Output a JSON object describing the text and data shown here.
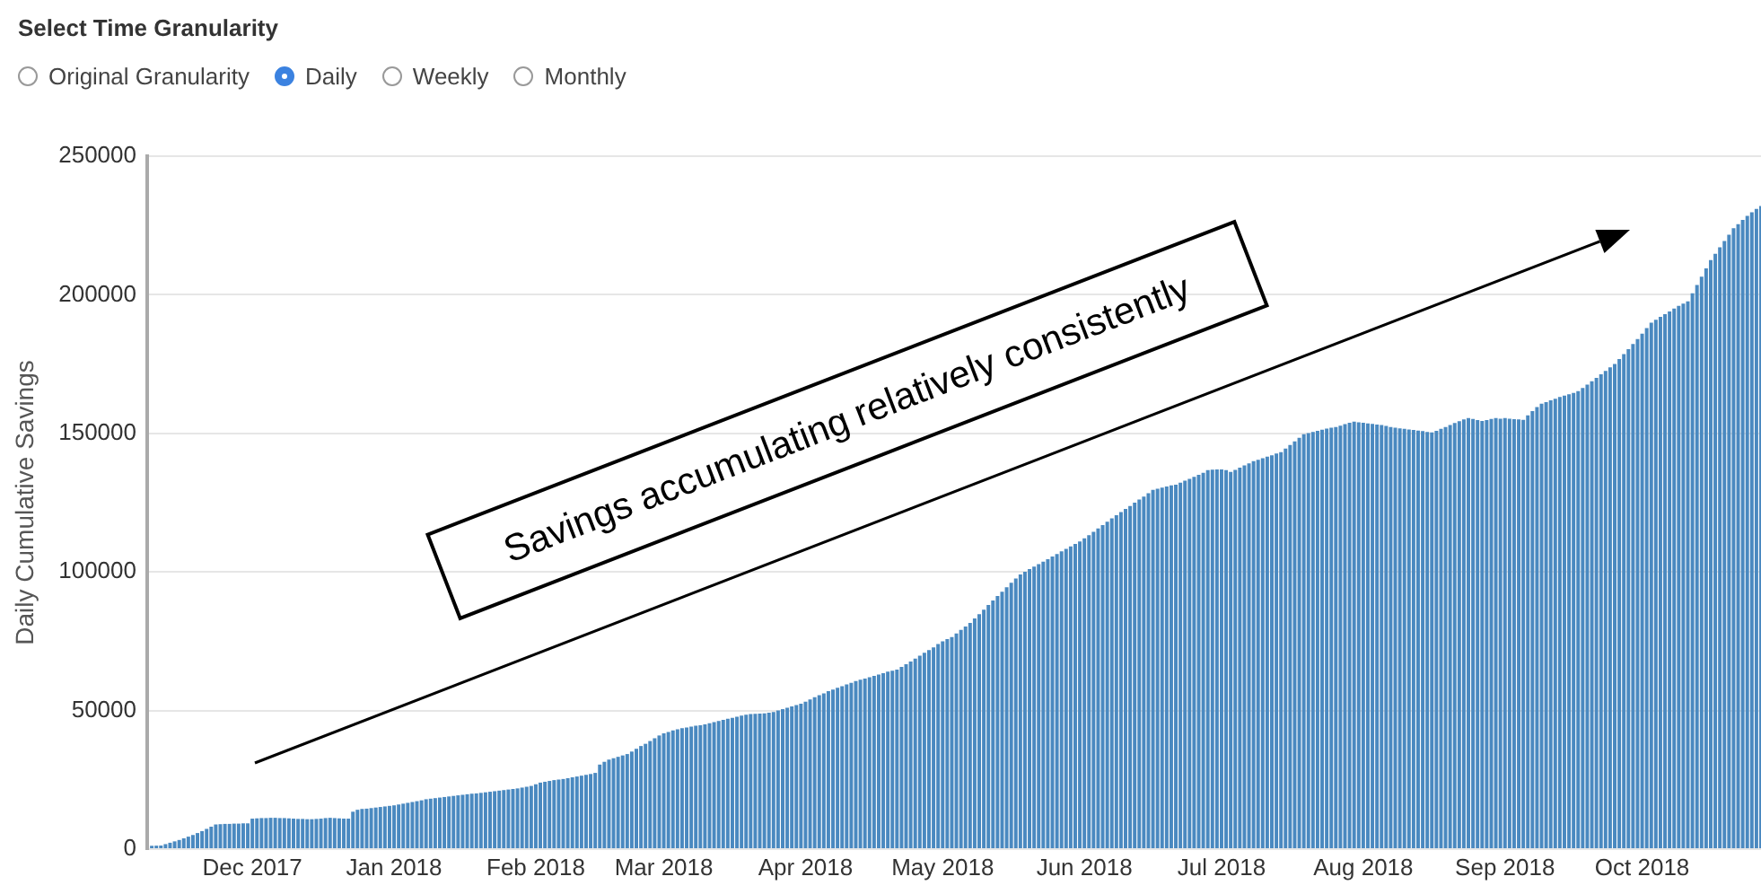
{
  "chart_data": {
    "type": "bar",
    "annotations": [
      "Select Time Granularity",
      "Original Granularity",
      "Daily",
      "Weekly",
      "Monthly",
      "Savings accumulating relatively consistently"
    ],
    "ylabel": "Daily Cumulative Savings",
    "x": [
      "2017-11-09",
      "2017-11-10",
      "2017-11-11",
      "2017-11-12",
      "2017-11-13",
      "2017-11-14",
      "2017-11-15",
      "2017-11-16",
      "2017-11-17",
      "2017-11-18",
      "2017-11-19",
      "2017-11-20",
      "2017-11-21",
      "2017-11-22",
      "2017-11-23",
      "2017-11-24",
      "2017-11-25",
      "2017-11-26",
      "2017-11-27",
      "2017-11-28",
      "2017-11-29",
      "2017-11-30",
      "2017-12-01",
      "2017-12-02",
      "2017-12-03",
      "2017-12-04",
      "2017-12-05",
      "2017-12-06",
      "2017-12-07",
      "2017-12-08",
      "2017-12-09",
      "2017-12-10",
      "2017-12-11",
      "2017-12-12",
      "2017-12-13",
      "2017-12-14",
      "2017-12-15",
      "2017-12-16",
      "2017-12-17",
      "2017-12-18",
      "2017-12-19",
      "2017-12-20",
      "2017-12-21",
      "2017-12-22",
      "2017-12-23",
      "2017-12-24",
      "2017-12-25",
      "2017-12-26",
      "2017-12-27",
      "2017-12-28",
      "2017-12-29",
      "2017-12-30",
      "2017-12-31",
      "2018-01-01",
      "2018-01-02",
      "2018-01-03",
      "2018-01-04",
      "2018-01-05",
      "2018-01-06",
      "2018-01-07",
      "2018-01-08",
      "2018-01-09",
      "2018-01-10",
      "2018-01-11",
      "2018-01-12",
      "2018-01-13",
      "2018-01-14",
      "2018-01-15",
      "2018-01-16",
      "2018-01-17",
      "2018-01-18",
      "2018-01-19",
      "2018-01-20",
      "2018-01-21",
      "2018-01-22",
      "2018-01-23",
      "2018-01-24",
      "2018-01-25",
      "2018-01-26",
      "2018-01-27",
      "2018-01-28",
      "2018-01-29",
      "2018-01-30",
      "2018-01-31",
      "2018-02-01",
      "2018-02-02",
      "2018-02-03",
      "2018-02-04",
      "2018-02-05",
      "2018-02-06",
      "2018-02-07",
      "2018-02-08",
      "2018-02-09",
      "2018-02-10",
      "2018-02-11",
      "2018-02-12",
      "2018-02-13",
      "2018-02-14",
      "2018-02-15",
      "2018-02-16",
      "2018-02-17",
      "2018-02-18",
      "2018-02-19",
      "2018-02-20",
      "2018-02-21",
      "2018-02-22",
      "2018-02-23",
      "2018-02-24",
      "2018-02-25",
      "2018-02-26",
      "2018-02-27",
      "2018-02-28",
      "2018-03-01",
      "2018-03-02",
      "2018-03-03",
      "2018-03-04",
      "2018-03-05",
      "2018-03-06",
      "2018-03-07",
      "2018-03-08",
      "2018-03-09",
      "2018-03-10",
      "2018-03-11",
      "2018-03-12",
      "2018-03-13",
      "2018-03-14",
      "2018-03-15",
      "2018-03-16",
      "2018-03-17",
      "2018-03-18",
      "2018-03-19",
      "2018-03-20",
      "2018-03-21",
      "2018-03-22",
      "2018-03-23",
      "2018-03-24",
      "2018-03-25",
      "2018-03-26",
      "2018-03-27",
      "2018-03-28",
      "2018-03-29",
      "2018-03-30",
      "2018-03-31",
      "2018-04-01",
      "2018-04-02",
      "2018-04-03",
      "2018-04-04",
      "2018-04-05",
      "2018-04-06",
      "2018-04-07",
      "2018-04-08",
      "2018-04-09",
      "2018-04-10",
      "2018-04-11",
      "2018-04-12",
      "2018-04-13",
      "2018-04-14",
      "2018-04-15",
      "2018-04-16",
      "2018-04-17",
      "2018-04-18",
      "2018-04-19",
      "2018-04-20",
      "2018-04-21",
      "2018-04-22",
      "2018-04-23",
      "2018-04-24",
      "2018-04-25",
      "2018-04-26",
      "2018-04-27",
      "2018-04-28",
      "2018-04-29",
      "2018-04-30",
      "2018-05-01",
      "2018-05-02",
      "2018-05-03",
      "2018-05-04",
      "2018-05-05",
      "2018-05-06",
      "2018-05-07",
      "2018-05-08",
      "2018-05-09",
      "2018-05-10",
      "2018-05-11",
      "2018-05-12",
      "2018-05-13",
      "2018-05-14",
      "2018-05-15",
      "2018-05-16",
      "2018-05-17",
      "2018-05-18",
      "2018-05-19",
      "2018-05-20",
      "2018-05-21",
      "2018-05-22",
      "2018-05-23",
      "2018-05-24",
      "2018-05-25",
      "2018-05-26",
      "2018-05-27",
      "2018-05-28",
      "2018-05-29",
      "2018-05-30",
      "2018-05-31",
      "2018-06-01",
      "2018-06-02",
      "2018-06-03",
      "2018-06-04",
      "2018-06-05",
      "2018-06-06",
      "2018-06-07",
      "2018-06-08",
      "2018-06-09",
      "2018-06-10",
      "2018-06-11",
      "2018-06-12",
      "2018-06-13",
      "2018-06-14",
      "2018-06-15",
      "2018-06-16",
      "2018-06-17",
      "2018-06-18",
      "2018-06-19",
      "2018-06-20",
      "2018-06-21",
      "2018-06-22",
      "2018-06-23",
      "2018-06-24",
      "2018-06-25",
      "2018-06-26",
      "2018-06-27",
      "2018-06-28",
      "2018-06-29",
      "2018-06-30",
      "2018-07-01",
      "2018-07-02",
      "2018-07-03",
      "2018-07-04",
      "2018-07-05",
      "2018-07-06",
      "2018-07-07",
      "2018-07-08",
      "2018-07-09",
      "2018-07-10",
      "2018-07-11",
      "2018-07-12",
      "2018-07-13",
      "2018-07-14",
      "2018-07-15",
      "2018-07-16",
      "2018-07-17",
      "2018-07-18",
      "2018-07-19",
      "2018-07-20",
      "2018-07-21",
      "2018-07-22",
      "2018-07-23",
      "2018-07-24",
      "2018-07-25",
      "2018-07-26",
      "2018-07-27",
      "2018-07-28",
      "2018-07-29",
      "2018-07-30",
      "2018-07-31",
      "2018-08-01",
      "2018-08-02",
      "2018-08-03",
      "2018-08-04",
      "2018-08-05",
      "2018-08-06",
      "2018-08-07",
      "2018-08-08",
      "2018-08-09",
      "2018-08-10",
      "2018-08-11",
      "2018-08-12",
      "2018-08-13",
      "2018-08-14",
      "2018-08-15",
      "2018-08-16",
      "2018-08-17",
      "2018-08-18",
      "2018-08-19",
      "2018-08-20",
      "2018-08-21",
      "2018-08-22",
      "2018-08-23",
      "2018-08-24",
      "2018-08-25",
      "2018-08-26",
      "2018-08-27",
      "2018-08-28",
      "2018-08-29",
      "2018-08-30",
      "2018-08-31",
      "2018-09-01",
      "2018-09-02",
      "2018-09-03",
      "2018-09-04",
      "2018-09-05",
      "2018-09-06",
      "2018-09-07",
      "2018-09-08",
      "2018-09-09",
      "2018-09-10",
      "2018-09-11",
      "2018-09-12",
      "2018-09-13",
      "2018-09-14",
      "2018-09-15",
      "2018-09-16",
      "2018-09-17",
      "2018-09-18",
      "2018-09-19",
      "2018-09-20",
      "2018-09-21",
      "2018-09-22",
      "2018-09-23",
      "2018-09-24",
      "2018-09-25",
      "2018-09-26",
      "2018-09-27",
      "2018-09-28",
      "2018-09-29",
      "2018-09-30",
      "2018-10-01",
      "2018-10-02",
      "2018-10-03",
      "2018-10-04",
      "2018-10-05",
      "2018-10-06",
      "2018-10-07",
      "2018-10-08",
      "2018-10-09",
      "2018-10-10",
      "2018-10-11",
      "2018-10-12",
      "2018-10-13",
      "2018-10-14",
      "2018-10-15",
      "2018-10-16",
      "2018-10-17",
      "2018-10-18",
      "2018-10-19",
      "2018-10-20",
      "2018-10-21",
      "2018-10-22",
      "2018-10-23",
      "2018-10-24",
      "2018-10-25",
      "2018-10-26",
      "2018-10-27"
    ],
    "values": [
      1200,
      1250,
      1300,
      1800,
      2300,
      2800,
      3300,
      3900,
      4500,
      5100,
      5800,
      6500,
      7300,
      8100,
      8900,
      9000,
      9100,
      9100,
      9200,
      9200,
      9300,
      9300,
      11000,
      11100,
      11200,
      11200,
      11300,
      11300,
      11200,
      11200,
      11100,
      11000,
      10900,
      10900,
      10800,
      10800,
      10900,
      11000,
      11200,
      11300,
      11200,
      11100,
      11000,
      11000,
      13500,
      14200,
      14500,
      14600,
      14800,
      15000,
      15200,
      15400,
      15600,
      15800,
      16100,
      16400,
      16700,
      17000,
      17300,
      17600,
      18000,
      18200,
      18400,
      18600,
      18800,
      19000,
      19200,
      19400,
      19600,
      19800,
      20000,
      20100,
      20300,
      20500,
      20700,
      20900,
      21100,
      21300,
      21500,
      21700,
      21900,
      22200,
      22500,
      22800,
      23400,
      24000,
      24300,
      24600,
      24900,
      25100,
      25300,
      25600,
      25900,
      26200,
      26500,
      26800,
      27100,
      27500,
      30500,
      31500,
      32300,
      32800,
      33300,
      33800,
      34300,
      35200,
      36200,
      37200,
      38000,
      39000,
      40000,
      41000,
      41800,
      42300,
      42800,
      43200,
      43600,
      43900,
      44200,
      44500,
      44700,
      45000,
      45400,
      45800,
      46200,
      46600,
      47000,
      47400,
      47800,
      48200,
      48500,
      48700,
      48800,
      48900,
      49000,
      49200,
      49500,
      50000,
      50500,
      51000,
      51500,
      52000,
      52500,
      53200,
      54000,
      54800,
      55500,
      56200,
      57000,
      57600,
      58200,
      58800,
      59400,
      60000,
      60600,
      61100,
      61500,
      62000,
      62500,
      63000,
      63500,
      64000,
      64400,
      64800,
      65700,
      66700,
      67700,
      68700,
      69800,
      70800,
      71800,
      72800,
      74000,
      75000,
      75800,
      76500,
      77800,
      79100,
      80300,
      81600,
      83200,
      84800,
      86400,
      88100,
      89700,
      91300,
      92900,
      94500,
      96100,
      97600,
      99100,
      100100,
      101000,
      101900,
      102800,
      103700,
      104600,
      105600,
      106500,
      107400,
      108300,
      109200,
      110100,
      111000,
      112100,
      113300,
      114500,
      115700,
      116900,
      118100,
      119300,
      120500,
      121600,
      122700,
      123800,
      125000,
      126100,
      127200,
      128400,
      129600,
      130000,
      130400,
      130800,
      131200,
      131500,
      132200,
      132900,
      133600,
      134300,
      135000,
      135800,
      136700,
      136900,
      137000,
      137000,
      136700,
      136100,
      136800,
      137600,
      138400,
      139200,
      140000,
      140500,
      141000,
      141600,
      142100,
      142700,
      143200,
      144500,
      145800,
      147100,
      148400,
      149700,
      150100,
      150500,
      150900,
      151300,
      151700,
      152000,
      152300,
      152800,
      153300,
      153800,
      154200,
      154000,
      153800,
      153600,
      153400,
      153200,
      153000,
      152700,
      152300,
      152000,
      151800,
      151600,
      151400,
      151200,
      151000,
      150800,
      150500,
      150300,
      150900,
      151600,
      152300,
      153000,
      153700,
      154400,
      155000,
      155500,
      155200,
      154800,
      154500,
      154800,
      155200,
      155500,
      155300,
      155500,
      155300,
      155100,
      155000,
      154900,
      156500,
      158000,
      159500,
      160700,
      161300,
      161900,
      162500,
      163100,
      163600,
      164100,
      164600,
      165200,
      166400,
      167600,
      168800,
      170000,
      171300,
      172500,
      173800,
      175000,
      176800,
      178600,
      180400,
      182200,
      184000,
      186000,
      188000,
      189900,
      191000,
      192000,
      193000,
      194000,
      195000,
      196000,
      196800,
      197600,
      200500,
      203500,
      206500,
      209500,
      212500,
      214800,
      217100,
      219400,
      221700,
      224000,
      225500,
      227000,
      228500,
      229800,
      231000,
      232000
    ],
    "color": "#4a89c0",
    "xlim": [
      "2017-11-08",
      "2018-10-27"
    ],
    "xticks": [
      {
        "value": "2017-12-01",
        "label": "Dec 2017"
      },
      {
        "value": "2018-01-01",
        "label": "Jan 2018"
      },
      {
        "value": "2018-02-01",
        "label": "Feb 2018"
      },
      {
        "value": "2018-03-01",
        "label": "Mar 2018"
      },
      {
        "value": "2018-04-01",
        "label": "Apr 2018"
      },
      {
        "value": "2018-05-01",
        "label": "May 2018"
      },
      {
        "value": "2018-06-01",
        "label": "Jun 2018"
      },
      {
        "value": "2018-07-01",
        "label": "Jul 2018"
      },
      {
        "value": "2018-08-01",
        "label": "Aug 2018"
      },
      {
        "value": "2018-09-01",
        "label": "Sep 2018"
      },
      {
        "value": "2018-10-01",
        "label": "Oct 2018"
      }
    ],
    "ylim": [
      0,
      250000
    ],
    "yticks": [
      0,
      50000,
      100000,
      150000,
      200000,
      250000
    ],
    "grid": "y"
  }
}
